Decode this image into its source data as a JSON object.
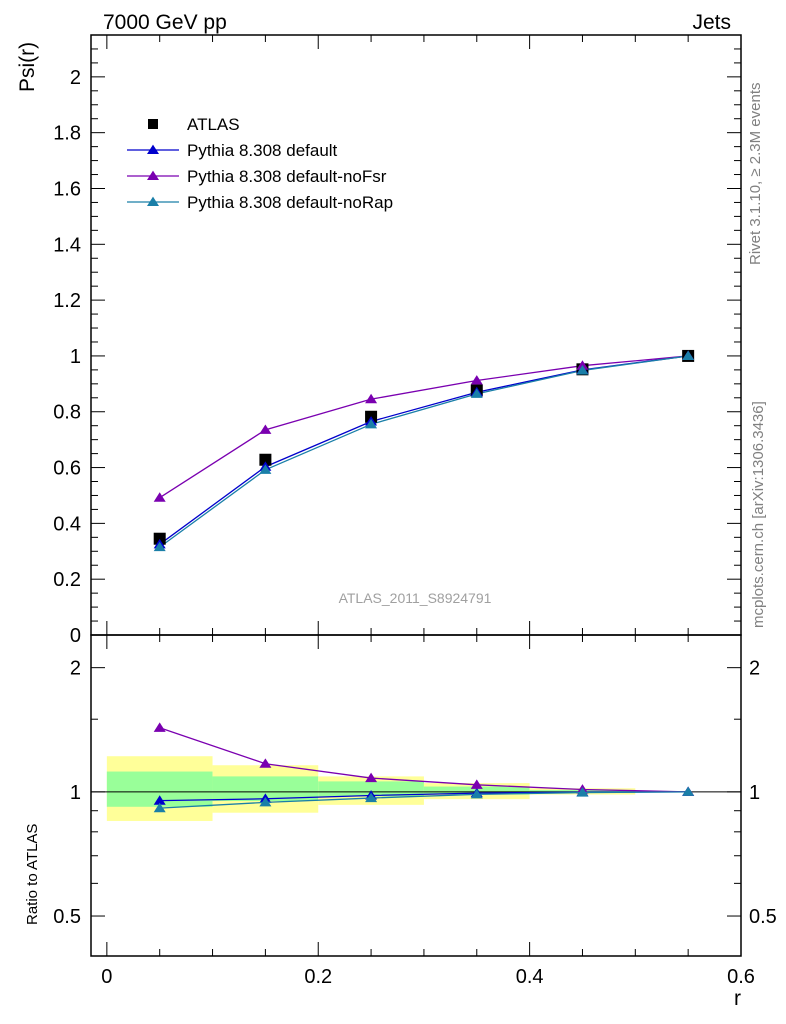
{
  "header": {
    "energy_label": "7000 GeV pp",
    "process_label": "Jets"
  },
  "side_text": {
    "rivet": "Rivet 3.1.10, ≥ 2.3M events",
    "mcplots": "mcplots.cern.ch [arXiv:1306.3436]"
  },
  "chart_data": [
    {
      "type": "scatter",
      "panel": "main",
      "ylabel": "Psi(r)",
      "xlim": [
        -0.015,
        0.6
      ],
      "ylim": [
        0,
        2.15
      ],
      "y_ticks": [
        0,
        0.2,
        0.4,
        0.6,
        0.8,
        1,
        1.2,
        1.4,
        1.6,
        1.8,
        2
      ],
      "y_tick_labels": [
        "0",
        "0.2",
        "0.4",
        "0.6",
        "0.8",
        "1",
        "1.2",
        "1.4",
        "1.6",
        "1.8",
        "2"
      ],
      "x": [
        0.05,
        0.15,
        0.25,
        0.35,
        0.45,
        0.55
      ],
      "watermark": "ATLAS_2011_S8924791",
      "legend_position": "top-left",
      "series": [
        {
          "name": "ATLAS",
          "marker": "square",
          "color": "#000000",
          "line": false,
          "values": [
            0.345,
            0.628,
            0.782,
            0.876,
            0.952,
            1.0
          ]
        },
        {
          "name": "Pythia 8.308 default",
          "marker": "triangle",
          "color": "#0000cc",
          "line": true,
          "values": [
            0.325,
            0.603,
            0.765,
            0.87,
            0.95,
            1.0
          ]
        },
        {
          "name": "Pythia 8.308 default-noFsr",
          "marker": "triangle",
          "color": "#7a00b0",
          "line": true,
          "values": [
            0.492,
            0.735,
            0.845,
            0.912,
            0.965,
            1.0
          ]
        },
        {
          "name": "Pythia 8.308 default-noRap",
          "marker": "triangle",
          "color": "#1a7fa8",
          "line": true,
          "values": [
            0.315,
            0.592,
            0.755,
            0.864,
            0.948,
            1.0
          ]
        }
      ]
    },
    {
      "type": "scatter",
      "panel": "ratio",
      "ylabel": "Ratio to ATLAS",
      "xlabel": "r",
      "xlim": [
        -0.015,
        0.6
      ],
      "ylim": [
        0.4,
        2.4
      ],
      "log_y": true,
      "y_ticks": [
        0.5,
        1,
        2
      ],
      "y_tick_labels": [
        "0.5",
        "1",
        "2"
      ],
      "x_ticks": [
        0,
        0.2,
        0.4,
        0.6
      ],
      "x_tick_labels": [
        "0",
        "0.2",
        "0.4",
        "0.6"
      ],
      "x": [
        0.05,
        0.15,
        0.25,
        0.35,
        0.45,
        0.55
      ],
      "bands": {
        "bin_edges": [
          0.0,
          0.1,
          0.2,
          0.3,
          0.4,
          0.5
        ],
        "yellow_low": [
          0.85,
          0.89,
          0.93,
          0.96,
          0.985
        ],
        "yellow_high": [
          1.22,
          1.16,
          1.09,
          1.05,
          1.02
        ],
        "green_low": [
          0.92,
          0.95,
          0.975,
          0.985,
          0.995
        ],
        "green_high": [
          1.12,
          1.09,
          1.06,
          1.03,
          1.01
        ]
      },
      "series": [
        {
          "name": "Pythia 8.308 default",
          "color": "#0000cc",
          "values": [
            0.952,
            0.962,
            0.98,
            0.993,
            0.998,
            1.0
          ]
        },
        {
          "name": "Pythia 8.308 default-noFsr",
          "color": "#7a00b0",
          "values": [
            1.43,
            1.17,
            1.08,
            1.04,
            1.013,
            1.0
          ]
        },
        {
          "name": "Pythia 8.308 default-noRap",
          "color": "#1a7fa8",
          "values": [
            0.913,
            0.943,
            0.966,
            0.986,
            0.996,
            1.0
          ]
        }
      ]
    }
  ]
}
